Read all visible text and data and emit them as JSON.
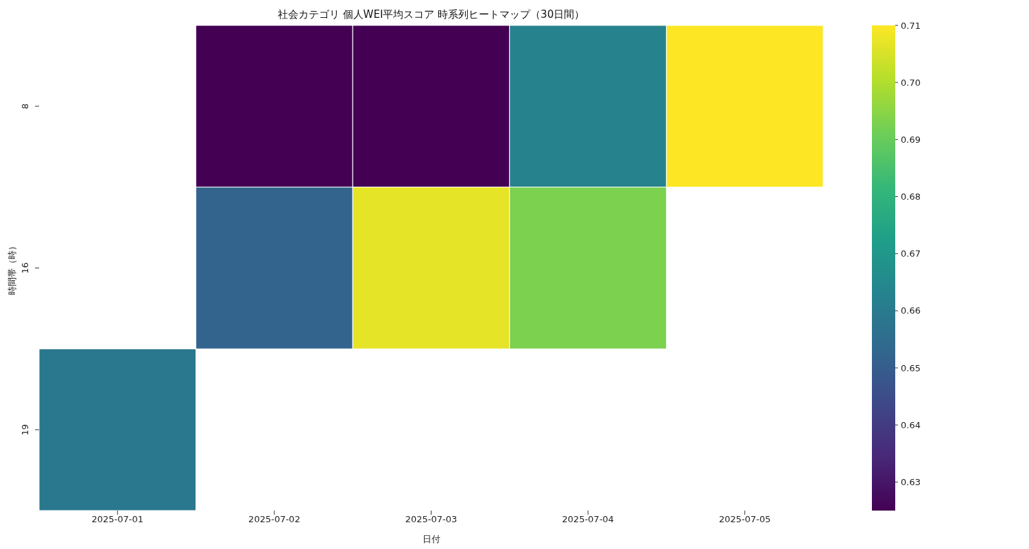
{
  "chart_data": {
    "type": "heatmap",
    "title": "社会カテゴリ 個人WEI平均スコア 時系列ヒートマップ（30日間）",
    "xlabel": "日付",
    "ylabel": "時間帯（時）",
    "categories": [
      "2025-07-01",
      "2025-07-02",
      "2025-07-03",
      "2025-07-04",
      "2025-07-05"
    ],
    "y_categories": [
      "8",
      "16",
      "19"
    ],
    "cells": [
      [
        null,
        0.625,
        0.625,
        0.663,
        0.71
      ],
      [
        null,
        0.652,
        0.707,
        0.693,
        null
      ],
      [
        0.659,
        null,
        null,
        null,
        null
      ]
    ],
    "clim": [
      0.625,
      0.71
    ],
    "cticks": [
      0.63,
      0.64,
      0.65,
      0.66,
      0.67,
      0.68,
      0.69,
      {
        "value": 0.7,
        "label": "0.70"
      },
      0.71
    ]
  }
}
